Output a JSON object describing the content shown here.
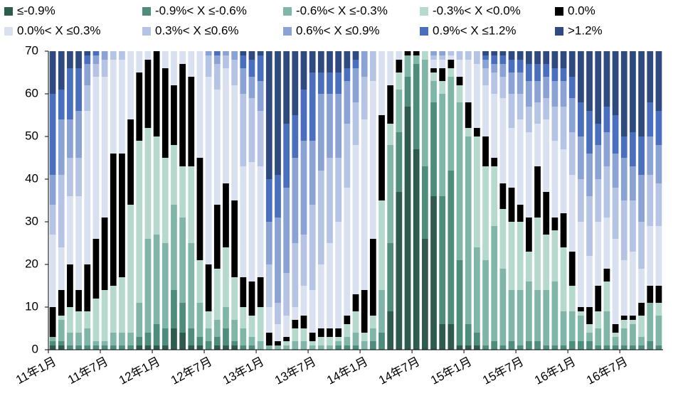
{
  "chart_data": {
    "type": "stacked_bar",
    "categories": [
      "11年1月",
      null,
      null,
      null,
      null,
      null,
      "11年7月",
      null,
      null,
      null,
      null,
      null,
      "12年1月",
      null,
      null,
      null,
      null,
      null,
      "12年7月",
      null,
      null,
      null,
      null,
      null,
      "13年1月",
      null,
      null,
      null,
      null,
      null,
      "13年7月",
      null,
      null,
      null,
      null,
      null,
      "14年1月",
      null,
      null,
      null,
      null,
      null,
      "14年7月",
      null,
      null,
      null,
      null,
      null,
      "15年1月",
      null,
      null,
      null,
      null,
      null,
      "15年7月",
      null,
      null,
      null,
      null,
      null,
      "16年1月",
      null,
      null,
      null,
      null,
      null,
      "16年7月",
      null,
      null,
      null,
      null
    ],
    "series": [
      {
        "name": "≤-0.9%",
        "color": "#2e5b4e",
        "values": [
          1,
          1,
          0,
          0,
          0,
          0,
          0,
          0,
          0,
          0,
          1,
          1,
          1,
          1,
          5,
          4,
          1,
          1,
          0,
          1,
          1,
          1,
          0,
          0,
          0,
          0,
          0,
          0,
          0,
          0,
          0,
          0,
          0,
          0,
          0,
          0,
          0,
          0,
          0,
          9,
          37,
          57,
          47,
          26,
          36,
          6,
          6,
          1,
          1,
          1,
          0,
          0,
          0,
          0,
          0,
          0,
          0,
          0,
          0,
          0,
          0,
          0,
          0,
          0,
          0,
          0,
          0,
          0,
          0,
          0,
          0
        ]
      },
      {
        "name": "-0.9%< X ≤-0.6%",
        "color": "#4e8c7c",
        "values": [
          1,
          1,
          1,
          1,
          1,
          1,
          1,
          1,
          1,
          1,
          2,
          3,
          5,
          4,
          9,
          7,
          4,
          2,
          2,
          2,
          4,
          1,
          1,
          1,
          0,
          0,
          0,
          0,
          0,
          0,
          0,
          0,
          0,
          1,
          1,
          1,
          0,
          2,
          4,
          16,
          14,
          7,
          20,
          17,
          22,
          30,
          36,
          20,
          5,
          3,
          1,
          2,
          1,
          2,
          1,
          2,
          2,
          1,
          1,
          1,
          2,
          2,
          2,
          1,
          1,
          1,
          1,
          1,
          1,
          2,
          1
        ]
      },
      {
        "name": "-0.6%< X ≤-0.3%",
        "color": "#80b6a8",
        "values": [
          1,
          5,
          3,
          3,
          4,
          1,
          1,
          3,
          3,
          3,
          8,
          22,
          21,
          20,
          20,
          20,
          20,
          8,
          3,
          4,
          5,
          5,
          4,
          2,
          2,
          1,
          1,
          1,
          2,
          2,
          1,
          1,
          1,
          1,
          2,
          3,
          2,
          3,
          10,
          23,
          10,
          5,
          2,
          25,
          5,
          24,
          22,
          37,
          44,
          20,
          20,
          27,
          18,
          12,
          13,
          14,
          12,
          13,
          15,
          8,
          7,
          6,
          2,
          4,
          8,
          2,
          4,
          5,
          2,
          9,
          7
        ]
      },
      {
        "name": "-0.3%< X <0.0%",
        "color": "#b5d9cd",
        "values": [
          0,
          1,
          6,
          5,
          4,
          10,
          12,
          11,
          13,
          30,
          38,
          26,
          23,
          20,
          14,
          12,
          18,
          10,
          4,
          12,
          14,
          10,
          5,
          5,
          8,
          0,
          0,
          1,
          3,
          3,
          1,
          2,
          2,
          1,
          3,
          5,
          2,
          3,
          21,
          5,
          4,
          0,
          0,
          2,
          2,
          3,
          2,
          4,
          2,
          26,
          22,
          14,
          14,
          16,
          16,
          7,
          17,
          13,
          12,
          15,
          6,
          1,
          2,
          4,
          7,
          1,
          2,
          1,
          5,
          0,
          3
        ]
      },
      {
        "name": "0.0%",
        "color": "#000000",
        "values": [
          7,
          6,
          10,
          5,
          11,
          14,
          17,
          31,
          29,
          20,
          16,
          16,
          20,
          21,
          14,
          24,
          21,
          24,
          11,
          15,
          15,
          18,
          7,
          8,
          7,
          3,
          1,
          1,
          2,
          3,
          2,
          2,
          2,
          2,
          2,
          4,
          10,
          18,
          20,
          9,
          3,
          1,
          1,
          0,
          1,
          3,
          2,
          2,
          6,
          2,
          7,
          2,
          6,
          8,
          4,
          8,
          12,
          10,
          3,
          8,
          8,
          1,
          4,
          6,
          3,
          2,
          1,
          1,
          3,
          4,
          4
        ]
      },
      {
        "name": "0.0%< X ≤0.3%",
        "color": "#d9e0f0",
        "values": [
          17,
          10,
          16,
          22,
          36,
          38,
          33,
          22,
          22,
          16,
          5,
          2,
          0,
          4,
          8,
          3,
          6,
          25,
          44,
          27,
          27,
          27,
          26,
          28,
          26,
          6,
          4,
          5,
          3,
          7,
          10,
          15,
          20,
          25,
          30,
          35,
          40,
          37,
          15,
          8,
          2,
          0,
          0,
          0,
          2,
          2,
          1,
          4,
          10,
          15,
          12,
          15,
          20,
          14,
          20,
          20,
          10,
          17,
          18,
          15,
          18,
          20,
          12,
          15,
          12,
          20,
          13,
          15,
          8,
          14,
          14
        ]
      },
      {
        "name": "0.3%< X ≤0.6%",
        "color": "#b5c4e4",
        "values": [
          7,
          17,
          9,
          9,
          6,
          3,
          4,
          2,
          2,
          0,
          0,
          0,
          0,
          0,
          0,
          0,
          0,
          0,
          5,
          6,
          3,
          6,
          17,
          15,
          13,
          10,
          5,
          10,
          15,
          12,
          20,
          22,
          20,
          15,
          15,
          10,
          10,
          7,
          0,
          0,
          0,
          0,
          0,
          0,
          1,
          1,
          1,
          2,
          2,
          3,
          4,
          5,
          5,
          8,
          6,
          6,
          5,
          5,
          8,
          10,
          10,
          10,
          14,
          10,
          12,
          12,
          14,
          12,
          11,
          12,
          10
        ]
      },
      {
        "name": "0.6%< X ≤0.9%",
        "color": "#8aa3d4",
        "values": [
          7,
          13,
          9,
          11,
          5,
          2,
          2,
          0,
          0,
          0,
          0,
          0,
          0,
          0,
          0,
          0,
          0,
          0,
          1,
          2,
          1,
          2,
          6,
          5,
          7,
          10,
          20,
          20,
          20,
          22,
          15,
          18,
          15,
          15,
          10,
          8,
          6,
          0,
          0,
          0,
          0,
          0,
          0,
          0,
          1,
          1,
          0,
          0,
          0,
          0,
          2,
          2,
          3,
          5,
          5,
          6,
          5,
          5,
          6,
          6,
          8,
          10,
          10,
          8,
          8,
          8,
          10,
          8,
          11,
          9,
          9
        ]
      },
      {
        "name": "0.9%< X ≤1.2%",
        "color": "#4a6fbe",
        "values": [
          19,
          7,
          12,
          10,
          2,
          1,
          0,
          0,
          0,
          0,
          0,
          0,
          0,
          0,
          0,
          0,
          0,
          0,
          0,
          1,
          0,
          0,
          3,
          4,
          6,
          10,
          10,
          15,
          10,
          12,
          16,
          5,
          5,
          5,
          3,
          2,
          0,
          0,
          0,
          0,
          0,
          0,
          0,
          0,
          0,
          0,
          0,
          0,
          0,
          0,
          1,
          2,
          2,
          3,
          3,
          4,
          4,
          3,
          3,
          3,
          5,
          8,
          10,
          5,
          6,
          9,
          5,
          8,
          9,
          8,
          8
        ]
      },
      {
        "name": ">1.2%",
        "color": "#2f4a7f",
        "values": [
          10,
          9,
          4,
          4,
          1,
          0,
          0,
          0,
          0,
          0,
          0,
          0,
          0,
          0,
          0,
          0,
          0,
          0,
          0,
          0,
          0,
          0,
          1,
          2,
          1,
          30,
          29,
          17,
          15,
          9,
          5,
          5,
          5,
          5,
          4,
          2,
          0,
          0,
          0,
          0,
          0,
          0,
          0,
          0,
          0,
          0,
          0,
          0,
          0,
          0,
          1,
          1,
          1,
          2,
          2,
          3,
          3,
          3,
          4,
          4,
          6,
          12,
          14,
          17,
          13,
          15,
          20,
          19,
          20,
          12,
          14
        ]
      }
    ],
    "ylim": [
      0,
      70
    ],
    "yticks": [
      0,
      10,
      20,
      30,
      40,
      50,
      60,
      70
    ],
    "grid": false,
    "legend": "top"
  }
}
